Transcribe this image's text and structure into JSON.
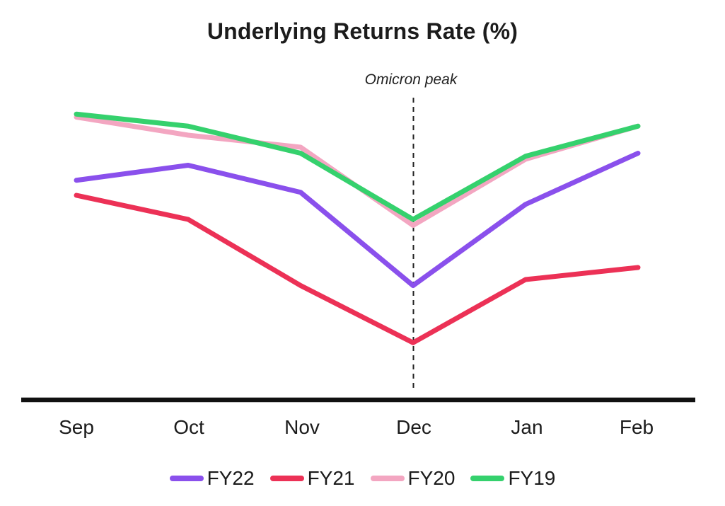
{
  "chart_data": {
    "type": "line",
    "title": "Underlying Returns Rate (%)",
    "categories": [
      "Sep",
      "Oct",
      "Nov",
      "Dec",
      "Jan",
      "Feb"
    ],
    "series": [
      {
        "name": "FY22",
        "color": "#8A50EC",
        "values": [
          73,
          78,
          69,
          38,
          65,
          82
        ]
      },
      {
        "name": "FY21",
        "color": "#EC3156",
        "values": [
          68,
          60,
          38,
          19,
          40,
          44
        ]
      },
      {
        "name": "FY20",
        "color": "#F3A6C1",
        "values": [
          94,
          88,
          84,
          58,
          80,
          91
        ]
      },
      {
        "name": "FY19",
        "color": "#35D16D",
        "values": [
          95,
          91,
          82,
          60,
          81,
          91
        ]
      }
    ],
    "z_order": [
      "FY20",
      "FY22",
      "FY21",
      "FY19"
    ],
    "annotation": {
      "text": "Omicron peak",
      "x": "Dec"
    },
    "xlabel": "",
    "ylabel": "",
    "ylim": [
      0,
      100
    ],
    "y_axis_shown": false,
    "y_unit": "relative scale (no y-axis ticks shown in figure)",
    "grid": false,
    "legend_position": "bottom"
  },
  "colors": {
    "background": "#ffffff",
    "text": "#1c1c1c",
    "axis": "#111111",
    "annotation_line": "#222222"
  }
}
